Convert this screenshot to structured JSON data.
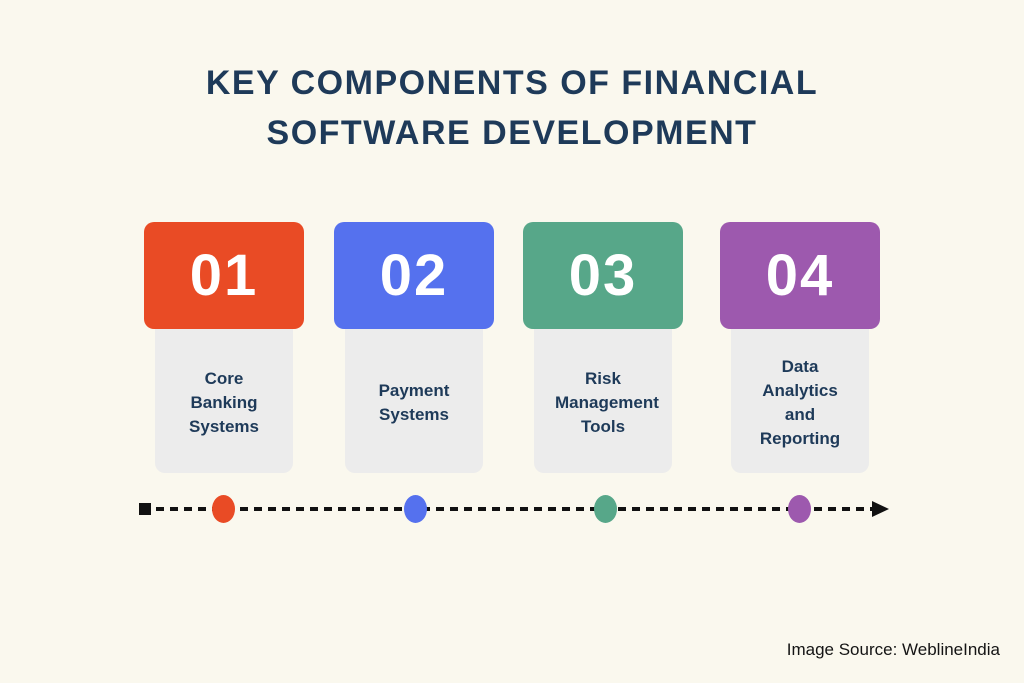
{
  "title": {
    "line1": "KEY COMPONENTS OF FINANCIAL",
    "line2": "SOFTWARE DEVELOPMENT"
  },
  "components": [
    {
      "number": "01",
      "label": "Core Banking Systems",
      "color": "#e94b25"
    },
    {
      "number": "02",
      "label": "Payment Systems",
      "color": "#5571ee"
    },
    {
      "number": "03",
      "label": "Risk Management Tools",
      "color": "#57a789"
    },
    {
      "number": "04",
      "label": "Data Analytics and Reporting",
      "color": "#9d59ae"
    }
  ],
  "timeline": {
    "line_color": "#111111",
    "dot_colors": [
      "#e94b25",
      "#5571ee",
      "#57a789",
      "#9d59ae"
    ]
  },
  "footer": {
    "source_label": "Image Source: WeblineIndia"
  },
  "colors": {
    "background": "#faf8ee",
    "title_text": "#1e3a59",
    "label_text": "#1e3a59",
    "label_card_bg": "#ececec",
    "number_text": "#ffffff"
  }
}
